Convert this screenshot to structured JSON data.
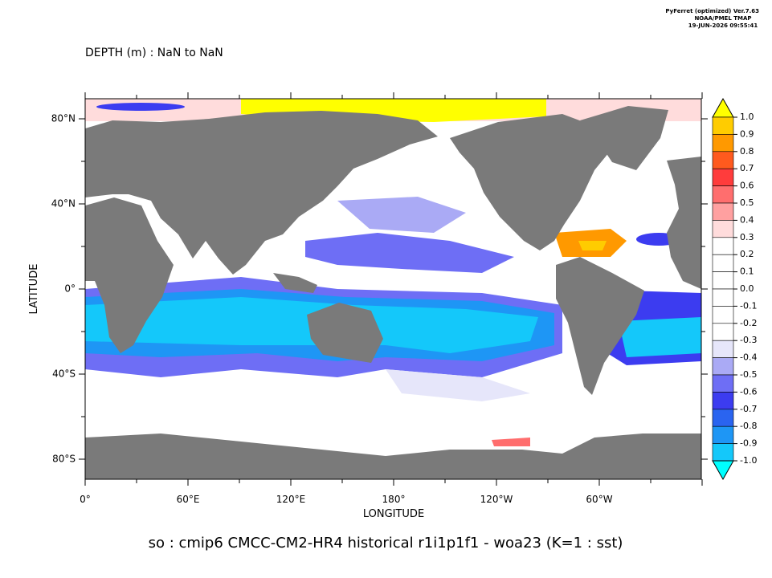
{
  "header": {
    "program": "PyFerret (optimized) Ver.7.63",
    "org": "NOAA/PMEL TMAP",
    "timestamp": "19-JUN-2026 09:55:41"
  },
  "subtitle": "DEPTH (m) : NaN to NaN",
  "x_axis": {
    "label": "LONGITUDE",
    "ticks": [
      "0°",
      "60°E",
      "120°E",
      "180°",
      "120°W",
      "60°W"
    ]
  },
  "y_axis": {
    "label": "LATITUDE",
    "ticks": [
      "80°N",
      "40°N",
      "0°",
      "40°S",
      "80°S"
    ]
  },
  "colorbar": {
    "labels": [
      "1.0",
      "0.9",
      "0.8",
      "0.7",
      "0.6",
      "0.5",
      "0.4",
      "0.3",
      "0.2",
      "0.1",
      "0.0",
      "-0.1",
      "-0.2",
      "-0.3",
      "-0.4",
      "-0.5",
      "-0.6",
      "-0.7",
      "-0.8",
      "-0.9",
      "-1.0"
    ],
    "colors": [
      "#ffff00",
      "#ffcc00",
      "#ff9900",
      "#ff5a1e",
      "#ff3c3c",
      "#ff6e6e",
      "#ffa0a0",
      "#ffdcdc",
      "#ffffff",
      "#ffffff",
      "#ffffff",
      "#ffffff",
      "#ffffff",
      "#ffffff",
      "#e6e6fa",
      "#aaaaf5",
      "#6e6ef5",
      "#3c3cf0",
      "#2a64f0",
      "#1e96f5",
      "#14c8fa",
      "#00ffff"
    ]
  },
  "title": "so : cmip6 CMCC-CM2-HR4 historical r1i1p1f1 - woa23  (K=1 : sst)"
}
